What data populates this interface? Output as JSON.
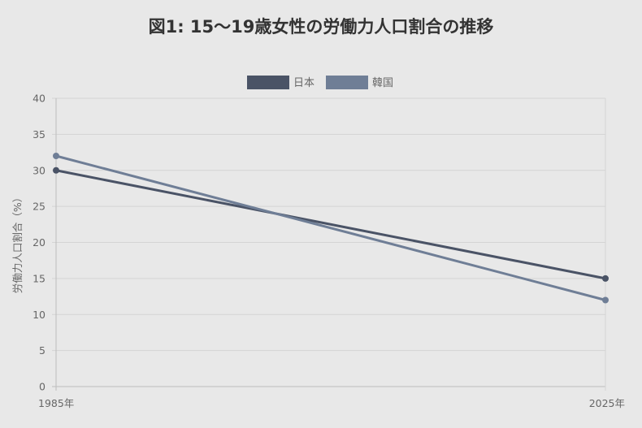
{
  "chart_data": {
    "type": "line",
    "title": "図1: 15〜19歳女性の労働力人口割合の推移",
    "xlabel": "",
    "ylabel": "労働力人口割合（%）",
    "categories": [
      "1985年",
      "2025年"
    ],
    "ylim": [
      0,
      40
    ],
    "yticks": [
      0,
      5,
      10,
      15,
      20,
      25,
      30,
      35,
      40
    ],
    "grid": true,
    "legend_position": "top-center",
    "series": [
      {
        "name": "日本",
        "values": [
          30,
          15
        ],
        "color": "#4a5366"
      },
      {
        "name": "韓国",
        "values": [
          32,
          12
        ],
        "color": "#6f7e96"
      }
    ]
  }
}
